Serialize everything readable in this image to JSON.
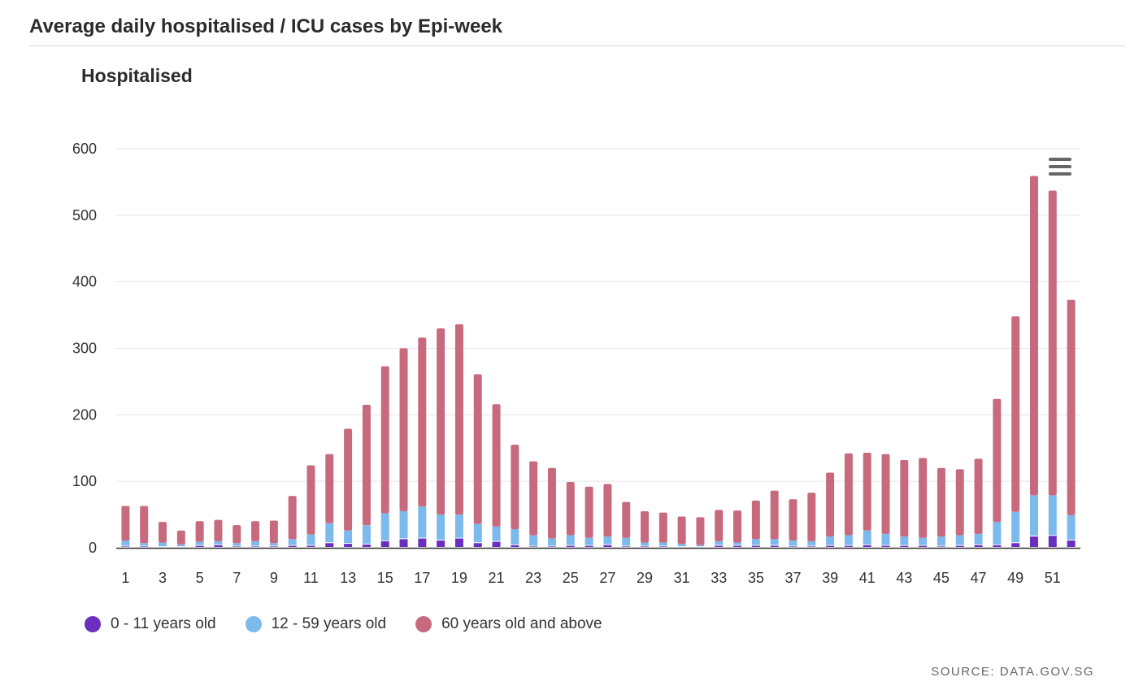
{
  "header": {
    "title": "Average daily hospitalised / ICU cases by Epi-week"
  },
  "source": "SOURCE: DATA.GOV.SG",
  "colors": {
    "age_0_11": "#6a2fbe",
    "age_12_59": "#7cb9ec",
    "age_60_plus": "#c86a7e",
    "grid": "#e4e4e4",
    "axis": "#333333"
  },
  "icons": {
    "menu": "hamburger-menu-icon"
  },
  "chart_data": {
    "type": "bar",
    "stacked": true,
    "title": "Hospitalised",
    "xlabel": "",
    "ylabel": "",
    "ylim": [
      0,
      600
    ],
    "yticks": [
      0,
      100,
      200,
      300,
      400,
      500,
      600
    ],
    "xtick_labels": [
      "1",
      "3",
      "5",
      "7",
      "9",
      "11",
      "13",
      "15",
      "17",
      "19",
      "21",
      "23",
      "25",
      "27",
      "29",
      "31",
      "33",
      "35",
      "37",
      "39",
      "41",
      "43",
      "45",
      "47",
      "49",
      "51"
    ],
    "categories": [
      1,
      2,
      3,
      4,
      5,
      6,
      7,
      8,
      9,
      10,
      11,
      12,
      13,
      14,
      15,
      16,
      17,
      18,
      19,
      20,
      21,
      22,
      23,
      24,
      25,
      26,
      27,
      28,
      29,
      30,
      31,
      32,
      33,
      34,
      35,
      36,
      37,
      38,
      39,
      40,
      41,
      42,
      43,
      44,
      45,
      46,
      47,
      48,
      49,
      50,
      51,
      52
    ],
    "legend_position": "bottom-left",
    "grid": true,
    "series": [
      {
        "name": "0 - 11 years old",
        "values": [
          2,
          2,
          1,
          1,
          3,
          4,
          2,
          2,
          2,
          3,
          3,
          7,
          6,
          5,
          10,
          13,
          14,
          11,
          14,
          7,
          9,
          4,
          2,
          2,
          3,
          3,
          4,
          2,
          2,
          2,
          1,
          1,
          3,
          3,
          3,
          3,
          2,
          2,
          3,
          3,
          4,
          3,
          3,
          3,
          2,
          3,
          4,
          4,
          7,
          17,
          18,
          11
        ]
      },
      {
        "name": "12 - 59 years old",
        "values": [
          9,
          5,
          7,
          4,
          6,
          6,
          5,
          8,
          5,
          10,
          17,
          30,
          20,
          29,
          42,
          42,
          48,
          39,
          36,
          29,
          23,
          24,
          17,
          12,
          16,
          12,
          13,
          13,
          6,
          6,
          5,
          3,
          7,
          5,
          10,
          10,
          9,
          8,
          14,
          16,
          22,
          18,
          14,
          12,
          15,
          16,
          17,
          35,
          47,
          62,
          61,
          38
        ]
      },
      {
        "name": "60 years old and above",
        "values": [
          52,
          56,
          31,
          21,
          31,
          32,
          27,
          30,
          34,
          65,
          104,
          104,
          153,
          181,
          221,
          245,
          254,
          280,
          286,
          225,
          184,
          127,
          111,
          106,
          80,
          77,
          79,
          54,
          47,
          45,
          41,
          42,
          47,
          48,
          58,
          73,
          62,
          73,
          96,
          123,
          117,
          120,
          115,
          120,
          103,
          99,
          113,
          185,
          294,
          480,
          458,
          324
        ]
      }
    ]
  }
}
